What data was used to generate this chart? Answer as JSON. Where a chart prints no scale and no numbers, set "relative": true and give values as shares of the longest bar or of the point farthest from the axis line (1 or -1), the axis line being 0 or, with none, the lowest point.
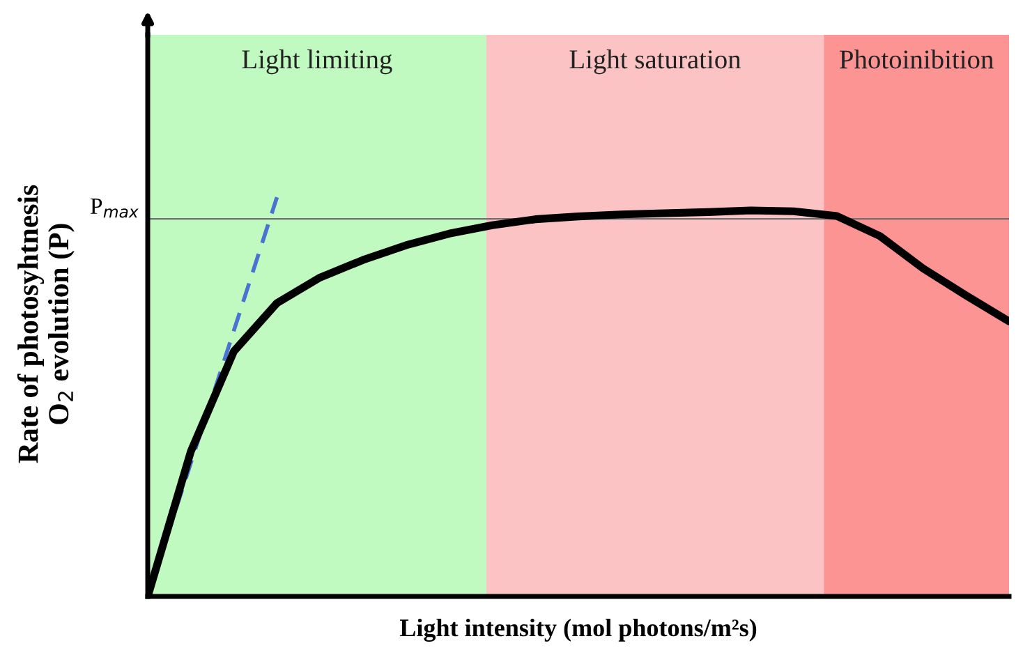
{
  "chart_data": {
    "type": "line",
    "relative": true,
    "xlabel": "Light intensity (mol photons/m²s)",
    "ylabel": "Rate of photosyhtnesis\nO$_{2}$ evolution (P)",
    "categories": [
      null,
      null,
      null,
      null,
      null,
      null,
      null,
      null,
      null,
      null,
      null,
      null,
      null,
      null,
      null,
      null,
      null,
      null,
      null,
      null,
      null
    ],
    "series": [
      {
        "color": "#000000",
        "line_style": "solid",
        "values": [
          0,
          0.363,
          0.614,
          0.735,
          0.799,
          0.843,
          0.88,
          0.909,
          0.93,
          0.945,
          0.952,
          0.957,
          0.96,
          0.963,
          0.967,
          0.965,
          0.953,
          0.903,
          0.822,
          0.754,
          0.689
        ]
      },
      {
        "color": "#4a72d0",
        "line_style": "dashed",
        "values": [
          0,
          0.334,
          0.666,
          1.0,
          null,
          null,
          null,
          null,
          null,
          null,
          null,
          null,
          null,
          null,
          null,
          null,
          null,
          null,
          null,
          null,
          null
        ]
      }
    ],
    "ref_lines": [
      {
        "axis": "y",
        "value": 0.946,
        "label": "P$_{max}$",
        "color": "#707070"
      }
    ],
    "annotations": [
      "Light limiting",
      "Light saturation",
      "Photoinibition"
    ],
    "grid": false,
    "legend": false
  }
}
